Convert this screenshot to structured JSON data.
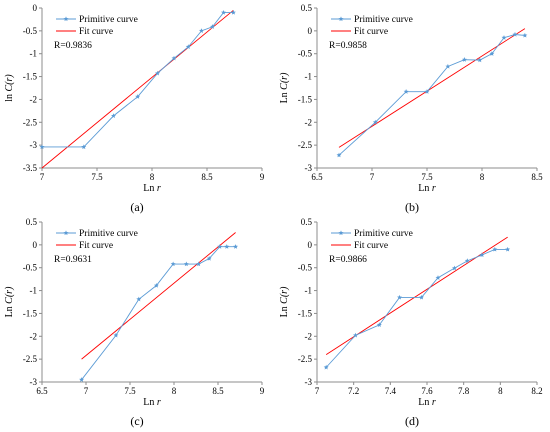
{
  "chart_data": [
    {
      "type": "line",
      "panel": "a",
      "xlabel": "Ln r",
      "ylabel": "ln C(r)",
      "xlim": [
        7,
        9
      ],
      "ylim": [
        -3.5,
        0
      ],
      "xticks": [
        "7",
        "7.5",
        "8",
        "8.5",
        "9"
      ],
      "yticks": [
        "0",
        "-0.5",
        "-1",
        "-1.5",
        "-2",
        "-2.5",
        "-3",
        "-3.5"
      ],
      "series": [
        {
          "name": "Primitive curve",
          "color": "#5b9bd5",
          "x": [
            7.0,
            7.38,
            7.65,
            7.87,
            8.05,
            8.2,
            8.33,
            8.45,
            8.55,
            8.65,
            8.74
          ],
          "y": [
            -3.04,
            -3.04,
            -2.36,
            -1.94,
            -1.43,
            -1.1,
            -0.85,
            -0.5,
            -0.41,
            -0.1,
            -0.1
          ]
        },
        {
          "name": "Fit curve",
          "color": "#ff0000",
          "x": [
            7.0,
            8.74
          ],
          "y": [
            -3.5,
            -0.05
          ]
        }
      ],
      "annotation": "R=0.9836",
      "legend": "top-left"
    },
    {
      "type": "line",
      "panel": "b",
      "xlabel": "Ln r",
      "ylabel": "Ln C(r)",
      "xlim": [
        6.5,
        8.5
      ],
      "ylim": [
        -3,
        0.5
      ],
      "xticks": [
        "6.5",
        "7",
        "7.5",
        "8",
        "8.5"
      ],
      "yticks": [
        "0.5",
        "0",
        "-0.5",
        "-1",
        "-1.5",
        "-2",
        "-2.5",
        "-3"
      ],
      "series": [
        {
          "name": "Primitive curve",
          "color": "#5b9bd5",
          "x": [
            6.7,
            7.03,
            7.31,
            7.5,
            7.69,
            7.84,
            7.98,
            8.09,
            8.2,
            8.3,
            8.39
          ],
          "y": [
            -2.72,
            -2.0,
            -1.33,
            -1.33,
            -0.78,
            -0.63,
            -0.64,
            -0.5,
            -0.15,
            -0.08,
            -0.1
          ]
        },
        {
          "name": "Fit curve",
          "color": "#ff0000",
          "x": [
            6.7,
            8.39
          ],
          "y": [
            -2.55,
            0.05
          ]
        }
      ],
      "annotation": "R=0.9858",
      "legend": "top-left"
    },
    {
      "type": "line",
      "panel": "c",
      "xlabel": "Ln r",
      "ylabel": "Ln C(r)",
      "xlim": [
        6.5,
        9
      ],
      "ylim": [
        -3,
        0.5
      ],
      "xticks": [
        "6.5",
        "7",
        "7.5",
        "8",
        "8.5",
        "9"
      ],
      "yticks": [
        "0.5",
        "0",
        "-0.5",
        "-1",
        "-1.5",
        "-2",
        "-2.5",
        "-3"
      ],
      "series": [
        {
          "name": "Primitive curve",
          "color": "#5b9bd5",
          "x": [
            6.95,
            7.34,
            7.6,
            7.8,
            7.99,
            8.14,
            8.28,
            8.4,
            8.52,
            8.6,
            8.7
          ],
          "y": [
            -2.95,
            -1.98,
            -1.19,
            -0.89,
            -0.42,
            -0.42,
            -0.42,
            -0.3,
            -0.04,
            -0.04,
            -0.04
          ]
        },
        {
          "name": "Fit curve",
          "color": "#ff0000",
          "x": [
            6.95,
            8.7
          ],
          "y": [
            -2.5,
            0.27
          ]
        }
      ],
      "annotation": "R=0.9631",
      "legend": "top-left"
    },
    {
      "type": "line",
      "panel": "d",
      "xlabel": "Ln r",
      "ylabel": "Ln C(r)",
      "xlim": [
        7,
        8.2
      ],
      "ylim": [
        -3,
        0.5
      ],
      "xticks": [
        "7",
        "7.2",
        "7.4",
        "7.6",
        "7.8",
        "8",
        "8.2"
      ],
      "yticks": [
        "0.5",
        "0",
        "-0.5",
        "-1",
        "-1.5",
        "-2",
        "-2.5",
        "-3"
      ],
      "series": [
        {
          "name": "Primitive curve",
          "color": "#5b9bd5",
          "x": [
            7.05,
            7.21,
            7.34,
            7.45,
            7.57,
            7.66,
            7.75,
            7.82,
            7.9,
            7.97,
            8.04
          ],
          "y": [
            -2.68,
            -1.98,
            -1.75,
            -1.15,
            -1.15,
            -0.72,
            -0.51,
            -0.35,
            -0.22,
            -0.1,
            -0.1
          ]
        },
        {
          "name": "Fit curve",
          "color": "#ff0000",
          "x": [
            7.05,
            8.04
          ],
          "y": [
            -2.4,
            0.17
          ]
        }
      ],
      "annotation": "R=0.9866",
      "legend": "top-left"
    }
  ],
  "panel_labels": [
    "(a)",
    "(b)",
    "(c)",
    "(d)"
  ]
}
